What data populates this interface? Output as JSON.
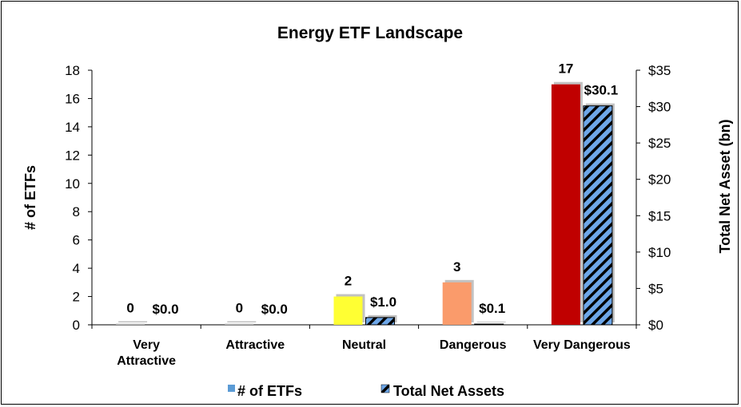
{
  "chart_data": {
    "type": "bar",
    "title": "Energy ETF Landscape",
    "categories": [
      "Very Attractive",
      "Attractive",
      "Neutral",
      "Dangerous",
      "Very Dangerous"
    ],
    "series": [
      {
        "name": "# of ETFs",
        "axis": "left",
        "values": [
          0,
          0,
          2,
          3,
          17
        ],
        "labels": [
          "0",
          "0",
          "2",
          "3",
          "17"
        ],
        "colors": [
          "#bfbfbf",
          "#bfbfbf",
          "#ffff33",
          "#fa9b6b",
          "#c00000"
        ],
        "legend_color": "#5b9bd5"
      },
      {
        "name": "Total Net Assets",
        "axis": "right",
        "values": [
          0.0,
          0.0,
          1.0,
          0.1,
          30.1
        ],
        "labels": [
          "$0.0",
          "$0.0",
          "$1.0",
          "$0.1",
          "$30.1"
        ],
        "pattern": "diagonal-stripes",
        "colors": [
          "#000000",
          "#6ea7e8"
        ]
      }
    ],
    "ylabel": "# of ETFs",
    "ylim": [
      0,
      18
    ],
    "yticks": [
      "0",
      "2",
      "4",
      "6",
      "8",
      "10",
      "12",
      "14",
      "16",
      "18"
    ],
    "y2label": "Total Net Asset (bn)",
    "y2lim": [
      0,
      35
    ],
    "y2ticks": [
      "$0",
      "$5",
      "$10",
      "$15",
      "$20",
      "$25",
      "$30",
      "$35"
    ],
    "grid": false,
    "legend_position": "bottom"
  }
}
